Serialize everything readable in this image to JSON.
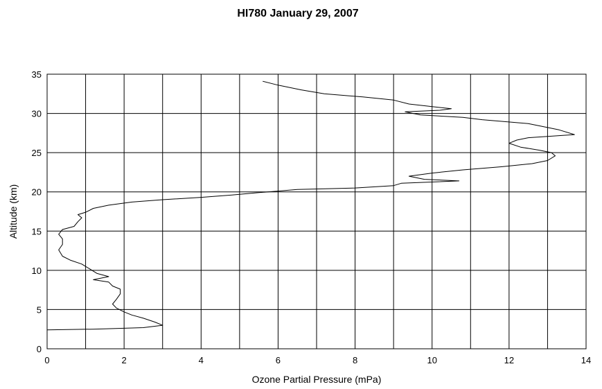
{
  "chart_data": {
    "type": "line",
    "title": "HI780   January 29, 2007",
    "xlabel": "Ozone Partial Pressure (mPa)",
    "ylabel": "Altitude (km)",
    "xlim": [
      0,
      14
    ],
    "ylim": [
      0,
      35
    ],
    "x_ticks": [
      "0",
      "2",
      "4",
      "6",
      "8",
      "10",
      "12",
      "14"
    ],
    "y_ticks": [
      "0",
      "5",
      "10",
      "15",
      "20",
      "25",
      "30",
      "35"
    ],
    "x_gridlines": [
      0,
      1,
      2,
      3,
      4,
      5,
      6,
      7,
      8,
      9,
      10,
      11,
      12,
      13,
      14
    ],
    "y_gridlines": [
      0,
      5,
      10,
      15,
      20,
      25,
      30,
      35
    ],
    "grid": true,
    "legend": "none",
    "series": [
      {
        "color": "#000000",
        "points": [
          [
            0.0,
            2.4
          ],
          [
            1.2,
            2.5
          ],
          [
            2.5,
            2.7
          ],
          [
            3.0,
            3.0
          ],
          [
            2.8,
            3.4
          ],
          [
            2.5,
            3.9
          ],
          [
            2.2,
            4.3
          ],
          [
            2.0,
            4.7
          ],
          [
            1.8,
            5.2
          ],
          [
            1.7,
            5.7
          ],
          [
            1.8,
            6.3
          ],
          [
            1.9,
            7.0
          ],
          [
            1.9,
            7.6
          ],
          [
            1.7,
            8.0
          ],
          [
            1.6,
            8.5
          ],
          [
            1.2,
            8.8
          ],
          [
            1.6,
            9.2
          ],
          [
            1.3,
            9.6
          ],
          [
            1.1,
            10.2
          ],
          [
            0.9,
            10.8
          ],
          [
            0.6,
            11.3
          ],
          [
            0.4,
            11.8
          ],
          [
            0.3,
            12.6
          ],
          [
            0.4,
            13.3
          ],
          [
            0.4,
            14.0
          ],
          [
            0.3,
            14.6
          ],
          [
            0.4,
            15.2
          ],
          [
            0.7,
            15.6
          ],
          [
            0.8,
            16.2
          ],
          [
            0.9,
            16.7
          ],
          [
            0.8,
            17.1
          ],
          [
            1.0,
            17.4
          ],
          [
            1.2,
            17.9
          ],
          [
            1.6,
            18.3
          ],
          [
            2.2,
            18.7
          ],
          [
            3.0,
            19.0
          ],
          [
            4.0,
            19.3
          ],
          [
            4.8,
            19.6
          ],
          [
            5.5,
            19.9
          ],
          [
            6.5,
            20.3
          ],
          [
            8.0,
            20.5
          ],
          [
            9.0,
            20.8
          ],
          [
            9.2,
            21.1
          ],
          [
            10.7,
            21.4
          ],
          [
            9.8,
            21.6
          ],
          [
            9.4,
            22.0
          ],
          [
            10.0,
            22.4
          ],
          [
            10.8,
            22.8
          ],
          [
            11.8,
            23.2
          ],
          [
            12.6,
            23.6
          ],
          [
            13.0,
            24.0
          ],
          [
            13.2,
            24.6
          ],
          [
            13.1,
            25.0
          ],
          [
            12.8,
            25.3
          ],
          [
            12.3,
            25.7
          ],
          [
            12.0,
            26.2
          ],
          [
            12.2,
            26.6
          ],
          [
            12.5,
            26.9
          ],
          [
            13.7,
            27.3
          ],
          [
            13.3,
            27.9
          ],
          [
            12.9,
            28.3
          ],
          [
            12.5,
            28.7
          ],
          [
            11.3,
            29.2
          ],
          [
            10.8,
            29.5
          ],
          [
            9.7,
            29.8
          ],
          [
            9.3,
            30.2
          ],
          [
            10.2,
            30.4
          ],
          [
            10.5,
            30.6
          ],
          [
            9.4,
            31.2
          ],
          [
            9.0,
            31.7
          ],
          [
            8.2,
            32.1
          ],
          [
            7.2,
            32.5
          ],
          [
            6.6,
            33.0
          ],
          [
            6.0,
            33.6
          ],
          [
            5.6,
            34.1
          ]
        ]
      }
    ]
  }
}
